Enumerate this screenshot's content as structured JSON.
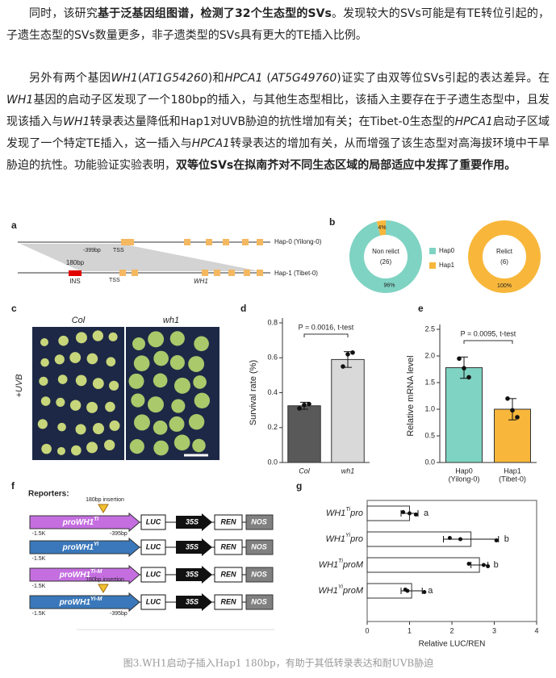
{
  "paragraphs": [
    {
      "runs": [
        {
          "text": "同时，该研究"
        },
        {
          "text": "基于泛基因组图谱，检测了32个生态型的SVs",
          "style": "bold"
        },
        {
          "text": "。发现较大的SVs可能是有TE转位引起的，子遗生态型的SVs数量更多，非子遗类型的SVs具有更大的TE插入比例。"
        }
      ]
    },
    {
      "runs": [
        {
          "text": "另外有两个基因"
        },
        {
          "text": "WH1",
          "style": "italic"
        },
        {
          "text": "("
        },
        {
          "text": "AT1G54260",
          "style": "italic"
        },
        {
          "text": ")和"
        },
        {
          "text": "HPCA1",
          "style": "italic"
        },
        {
          "text": " ("
        },
        {
          "text": "AT5G49760",
          "style": "italic"
        },
        {
          "text": ")证实了由双等位SVs引起的表达差异。在"
        },
        {
          "text": "WH1",
          "style": "italic"
        },
        {
          "text": "基因的启动子区发现了一个180bp的插入，与其他生态型相比，该插入主要存在于子遗生态型中，且发现该插入与"
        },
        {
          "text": "WH1",
          "style": "italic"
        },
        {
          "text": "转录表达量降低和Hap1对UVB胁迫的抗性增加有关；在Tibet-0生态型的"
        },
        {
          "text": "HPCA1",
          "style": "italic"
        },
        {
          "text": "启动子区域发现了一个特定TE插入，这一插入与"
        },
        {
          "text": "HPCA1",
          "style": "italic"
        },
        {
          "text": "转录表达的增加有关，从而增强了该生态型对高海拔环境中干旱胁迫的抗性。功能验证实验表明，"
        },
        {
          "text": "双等位SVs在拟南芥对不同生态区域的局部适应中发挥了重要作用。",
          "style": "bold"
        }
      ]
    }
  ],
  "panel_labels": [
    "a",
    "b",
    "c",
    "d",
    "e",
    "f",
    "g"
  ],
  "gene_diagram": {
    "top_label": "Hap-0 (Yilong-0)",
    "bottom_label": "Hap-1 (Tibet-0)",
    "top_position": "-399bp",
    "top_tss": "TSS",
    "insertion_size": "180bp",
    "insertion_label": "INS",
    "bottom_tss": "TSS",
    "gene": "WH1"
  },
  "photo": {
    "labels": [
      "Col",
      "wh1"
    ],
    "treatment": "+UVB"
  },
  "reporters": {
    "title": "Reporters:",
    "elements": [
      "LUC",
      "35S",
      "REN",
      "NOS"
    ],
    "rows": [
      {
        "promoter": "proWH1",
        "sup": "Ti",
        "color": "#c56ee0",
        "start": "-1.5K",
        "insertion": "180bp insertion",
        "position": "-395bp"
      },
      {
        "promoter": "proWH1",
        "sup": "Yi",
        "color": "#3a78bb",
        "start": "-1.5K"
      },
      {
        "promoter": "proWH1",
        "sup": "Ti-M",
        "color": "#c56ee0",
        "start": "-1.5K"
      },
      {
        "promoter": "proWH1",
        "sup": "Yi-M",
        "color": "#3a78bb",
        "start": "-1.5K",
        "insertion": "180bp insertion",
        "position": "-395bp"
      }
    ]
  },
  "chart_data": [
    {
      "type": "pie",
      "categories": [
        "Hap0",
        "Hap1"
      ],
      "colors": [
        "#7fd3c3",
        "#f8b73b"
      ],
      "values": [
        96,
        4
      ],
      "value_labels": [
        "96%",
        "4%"
      ],
      "center_label": "Non relict",
      "count_label": "(26)"
    },
    {
      "type": "pie",
      "colors": [
        "#7fd3c3",
        "#f8b73b"
      ],
      "values": [
        0,
        100
      ],
      "value_labels": [
        null,
        "100%"
      ],
      "center_label": "Relict",
      "count_label": "(6)"
    },
    {
      "type": "bar",
      "ylabel": "Survival rate (%)",
      "categories": [
        "Col",
        "wh1"
      ],
      "category_style": "italic",
      "colors": [
        "#595959",
        "#d9d9d9"
      ],
      "values": [
        0.325,
        0.59
      ],
      "errors": [
        0.02,
        0.045
      ],
      "points": [
        [
          0.31,
          0.33,
          0.335
        ],
        [
          0.55,
          0.62,
          0.63
        ]
      ],
      "ylim": [
        0,
        0.8
      ],
      "yticks": [
        {
          "value": 0,
          "label": "0.0"
        },
        0.2,
        0.4,
        0.6,
        0.8
      ],
      "annotation": "P = 0.0016, t-test"
    },
    {
      "type": "bar",
      "ylabel": "Relative mRNA level",
      "categories": [
        "Hap0",
        "Hap1"
      ],
      "subcategories": [
        "(Yilong-0)",
        "(Tibet-0)"
      ],
      "colors": [
        "#7fd3c3",
        "#f8b73b"
      ],
      "values": [
        1.78,
        1.0
      ],
      "errors": [
        0.2,
        0.2
      ],
      "points": [
        [
          1.95,
          1.77,
          1.6
        ],
        [
          1.2,
          0.98,
          0.85
        ]
      ],
      "ylim": [
        0,
        2.5
      ],
      "yticks": [
        {
          "value": 0,
          "label": "0.0"
        },
        0.5,
        {
          "value": 1,
          "label": "1.0"
        },
        1.5,
        {
          "value": 2,
          "label": "2.0"
        },
        2.5
      ],
      "annotation": "P = 0.0095, t-test"
    },
    {
      "type": "hbar",
      "xlabel": "Relative LUC/REN",
      "categories": [
        {
          "name": "WH1",
          "sup": "Ti",
          "suffix": "pro"
        },
        {
          "name": "WH1",
          "sup": "Yi",
          "suffix": "pro"
        },
        {
          "name": "WH1",
          "sup": "Ti",
          "suffix": "proM"
        },
        {
          "name": "WH1",
          "sup": "Yi",
          "suffix": "proM"
        }
      ],
      "color": "#ffffff",
      "values": [
        1.0,
        2.45,
        2.65,
        1.05
      ],
      "errors": [
        0.2,
        0.65,
        0.2,
        0.25
      ],
      "points": [
        [
          0.85,
          1.0,
          1.15
        ],
        [
          1.95,
          2.2,
          3.05
        ],
        [
          2.4,
          2.75,
          2.85
        ],
        [
          0.9,
          0.95,
          1.35
        ]
      ],
      "letters": [
        "a",
        "b",
        "b",
        "a"
      ],
      "xlim": [
        0,
        4
      ],
      "xticks": [
        0,
        1,
        2,
        3,
        4
      ]
    }
  ],
  "caption": "图3.WH1启动子插入Hap1 180bp，有助于其低转录表达和耐UVB胁迫"
}
